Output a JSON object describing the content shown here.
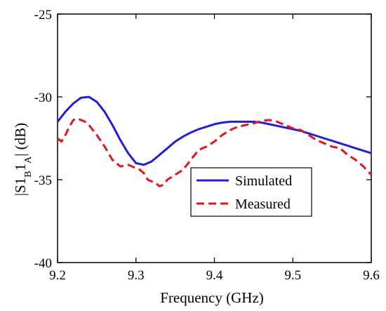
{
  "chart_data": {
    "type": "line",
    "xlabel": "Frequency (GHz)",
    "ylabel_parts": {
      "before_b": "|S1",
      "sub_b": "B",
      "mid": "1",
      "sub_a": "A",
      "after": "| (dB)"
    },
    "xlim": [
      9.2,
      9.6
    ],
    "ylim": [
      -40,
      -25
    ],
    "xticks": [
      9.2,
      9.3,
      9.4,
      9.5,
      9.6
    ],
    "xtick_labels": [
      "9.2",
      "9.3",
      "9.4",
      "9.5",
      "9.6"
    ],
    "yticks": [
      -40,
      -35,
      -30,
      -25
    ],
    "ytick_labels": [
      "-40",
      "-35",
      "-30",
      "-25"
    ],
    "grid": false,
    "legend_position": "center-right",
    "series": [
      {
        "name": "Simulated",
        "color": "#1f1fd6",
        "style": "solid",
        "x": [
          9.2,
          9.21,
          9.22,
          9.23,
          9.24,
          9.25,
          9.26,
          9.27,
          9.28,
          9.29,
          9.3,
          9.31,
          9.32,
          9.33,
          9.34,
          9.35,
          9.36,
          9.37,
          9.38,
          9.39,
          9.4,
          9.41,
          9.42,
          9.43,
          9.44,
          9.45,
          9.46,
          9.47,
          9.48,
          9.49,
          9.5,
          9.51,
          9.52,
          9.53,
          9.54,
          9.55,
          9.56,
          9.57,
          9.58,
          9.59,
          9.6
        ],
        "values": [
          -31.5,
          -30.9,
          -30.4,
          -30.05,
          -30.0,
          -30.3,
          -30.9,
          -31.7,
          -32.6,
          -33.4,
          -34.0,
          -34.1,
          -33.9,
          -33.5,
          -33.1,
          -32.7,
          -32.4,
          -32.15,
          -31.95,
          -31.8,
          -31.65,
          -31.55,
          -31.5,
          -31.5,
          -31.5,
          -31.5,
          -31.55,
          -31.65,
          -31.75,
          -31.85,
          -31.95,
          -32.05,
          -32.2,
          -32.35,
          -32.5,
          -32.65,
          -32.8,
          -32.95,
          -33.1,
          -33.25,
          -33.4
        ]
      },
      {
        "name": "Measured",
        "color": "#e6141e",
        "style": "dashed",
        "x": [
          9.2,
          9.205,
          9.21,
          9.215,
          9.22,
          9.225,
          9.23,
          9.235,
          9.24,
          9.25,
          9.26,
          9.27,
          9.28,
          9.29,
          9.3,
          9.305,
          9.31,
          9.315,
          9.32,
          9.325,
          9.33,
          9.335,
          9.34,
          9.35,
          9.36,
          9.37,
          9.38,
          9.39,
          9.4,
          9.41,
          9.42,
          9.43,
          9.44,
          9.45,
          9.46,
          9.47,
          9.48,
          9.49,
          9.5,
          9.51,
          9.52,
          9.53,
          9.54,
          9.55,
          9.56,
          9.57,
          9.58,
          9.59,
          9.6
        ],
        "values": [
          -32.5,
          -32.7,
          -32.3,
          -31.8,
          -31.4,
          -31.3,
          -31.4,
          -31.5,
          -31.7,
          -32.3,
          -33.0,
          -33.8,
          -34.2,
          -34.1,
          -34.3,
          -34.4,
          -34.6,
          -35.0,
          -35.1,
          -35.2,
          -35.4,
          -35.3,
          -35.0,
          -34.7,
          -34.4,
          -33.8,
          -33.2,
          -33.0,
          -32.7,
          -32.3,
          -32.0,
          -31.8,
          -31.7,
          -31.6,
          -31.45,
          -31.4,
          -31.5,
          -31.7,
          -31.9,
          -32.0,
          -32.3,
          -32.6,
          -32.8,
          -33.0,
          -33.1,
          -33.5,
          -33.8,
          -34.2,
          -34.7
        ]
      }
    ]
  }
}
